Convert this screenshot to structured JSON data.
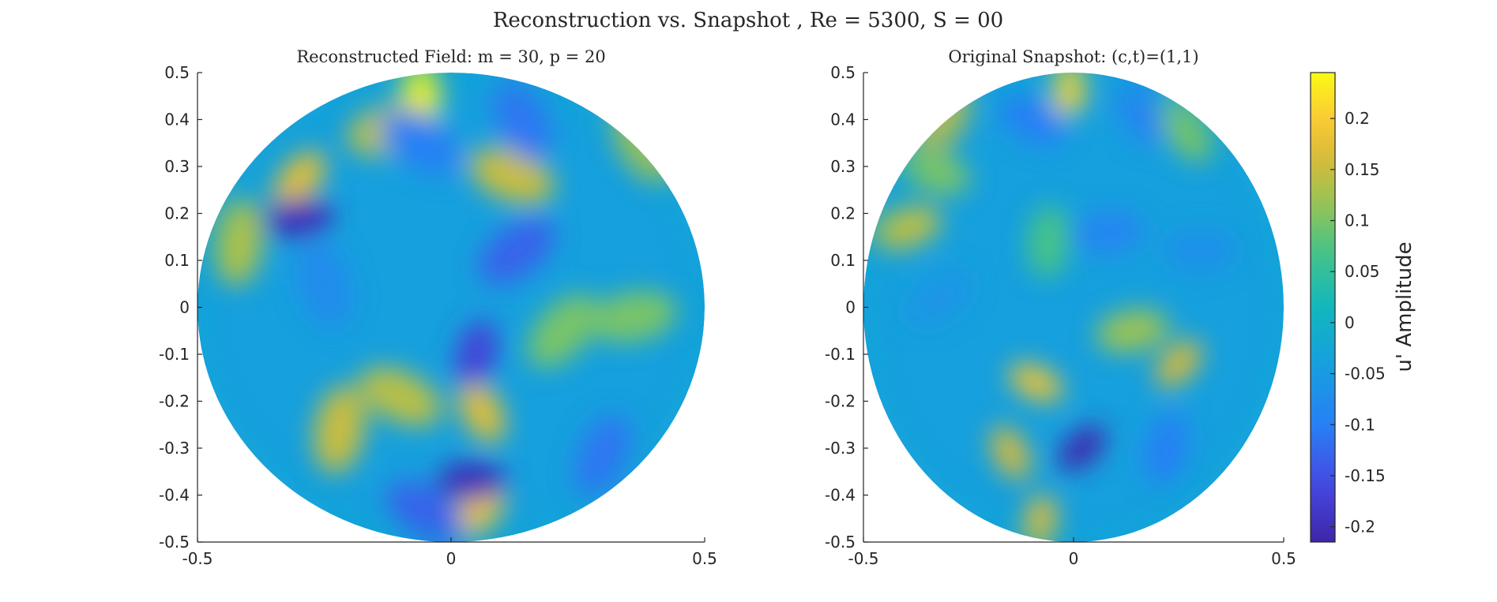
{
  "chart_data": {
    "type": "heatmap",
    "title": "Reconstruction vs. Snapshot , Re = 5300, S = 00",
    "panels": [
      {
        "title": "Reconstructed Field: m = 30, p = 20",
        "xlim": [
          -0.5,
          0.5
        ],
        "ylim": [
          -0.5,
          0.5
        ],
        "xticks": [
          -0.5,
          0,
          0.5
        ],
        "xtick_labels": [
          "-0.5",
          "0",
          "0.5"
        ],
        "yticks": [
          0.5,
          0.4,
          0.3,
          0.2,
          0.1,
          0,
          -0.1,
          -0.2,
          -0.3,
          -0.4,
          -0.5
        ],
        "ytick_labels": [
          "0.5",
          "0.4",
          "0.3",
          "0.2",
          "0.1",
          "0",
          "-0.1",
          "-0.2",
          "-0.3",
          "-0.4",
          "-0.5"
        ],
        "domain": "unit disk of radius 0.5",
        "features": [
          {
            "x": -0.06,
            "y": 0.45,
            "value": 0.24
          },
          {
            "x": -0.3,
            "y": 0.27,
            "value": 0.17
          },
          {
            "x": -0.12,
            "y": 0.38,
            "value": 0.14
          },
          {
            "x": 0.12,
            "y": 0.28,
            "value": 0.15
          },
          {
            "x": 0.38,
            "y": 0.35,
            "value": 0.13
          },
          {
            "x": -0.42,
            "y": 0.14,
            "value": 0.13
          },
          {
            "x": 0.22,
            "y": -0.05,
            "value": 0.1
          },
          {
            "x": 0.36,
            "y": -0.02,
            "value": 0.1
          },
          {
            "x": -0.1,
            "y": -0.19,
            "value": 0.14
          },
          {
            "x": 0.06,
            "y": -0.22,
            "value": 0.17
          },
          {
            "x": -0.22,
            "y": -0.26,
            "value": 0.15
          },
          {
            "x": 0.05,
            "y": -0.44,
            "value": 0.18
          },
          {
            "x": -0.3,
            "y": 0.19,
            "value": -0.2
          },
          {
            "x": -0.06,
            "y": 0.35,
            "value": -0.1
          },
          {
            "x": 0.14,
            "y": 0.4,
            "value": -0.11
          },
          {
            "x": 0.05,
            "y": -0.1,
            "value": -0.17
          },
          {
            "x": 0.13,
            "y": 0.12,
            "value": -0.13
          },
          {
            "x": 0.04,
            "y": -0.37,
            "value": -0.2
          },
          {
            "x": -0.05,
            "y": -0.44,
            "value": -0.13
          },
          {
            "x": -0.25,
            "y": 0.05,
            "value": -0.08
          },
          {
            "x": 0.3,
            "y": -0.32,
            "value": -0.11
          }
        ]
      },
      {
        "title": "Original Snapshot: (c,t)=(1,1)",
        "xlim": [
          -0.5,
          0.5
        ],
        "ylim": [
          -0.5,
          0.5
        ],
        "xticks": [
          -0.5,
          0,
          0.5
        ],
        "xtick_labels": [
          "-0.5",
          "0",
          "0.5"
        ],
        "yticks": [
          0.5,
          0.4,
          0.3,
          0.2,
          0.1,
          0,
          -0.1,
          -0.2,
          -0.3,
          -0.4,
          -0.5
        ],
        "ytick_labels": [
          "0.5",
          "0.4",
          "0.3",
          "0.2",
          "0.1",
          "0",
          "-0.1",
          "-0.2",
          "-0.3",
          "-0.4",
          "-0.5"
        ],
        "domain": "unit disk of radius 0.5",
        "features": [
          {
            "x": -0.01,
            "y": 0.47,
            "value": 0.21
          },
          {
            "x": -0.31,
            "y": 0.4,
            "value": 0.15
          },
          {
            "x": -0.4,
            "y": 0.17,
            "value": 0.14
          },
          {
            "x": -0.33,
            "y": 0.29,
            "value": 0.1
          },
          {
            "x": 0.27,
            "y": 0.38,
            "value": 0.1
          },
          {
            "x": -0.06,
            "y": 0.14,
            "value": 0.07
          },
          {
            "x": 0.25,
            "y": -0.12,
            "value": 0.16
          },
          {
            "x": 0.14,
            "y": -0.05,
            "value": 0.12
          },
          {
            "x": -0.09,
            "y": -0.16,
            "value": 0.18
          },
          {
            "x": -0.15,
            "y": -0.31,
            "value": 0.16
          },
          {
            "x": -0.08,
            "y": -0.46,
            "value": 0.17
          },
          {
            "x": 0.02,
            "y": -0.3,
            "value": -0.21
          },
          {
            "x": 0.08,
            "y": 0.16,
            "value": -0.09
          },
          {
            "x": -0.1,
            "y": 0.4,
            "value": -0.1
          },
          {
            "x": 0.16,
            "y": 0.42,
            "value": -0.09
          },
          {
            "x": 0.22,
            "y": -0.3,
            "value": -0.1
          },
          {
            "x": -0.32,
            "y": 0.02,
            "value": -0.06
          },
          {
            "x": 0.3,
            "y": 0.12,
            "value": -0.07
          }
        ]
      }
    ],
    "colorbar": {
      "label": "u' Amplitude",
      "range": [
        -0.215,
        0.245
      ],
      "ticks": [
        0.2,
        0.15,
        0.1,
        0.05,
        0,
        -0.05,
        -0.1,
        -0.15,
        -0.2
      ],
      "tick_labels": [
        "0.2",
        "0.15",
        "0.1",
        "0.05",
        "0",
        "-0.05",
        "-0.1",
        "-0.15",
        "-0.2"
      ],
      "colormap": "parula"
    }
  }
}
